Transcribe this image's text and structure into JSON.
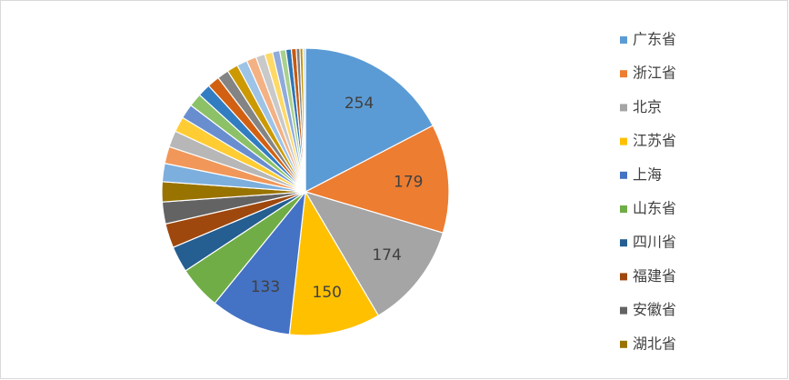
{
  "chart_data": {
    "type": "pie",
    "categories": [
      "广东省",
      "浙江省",
      "北京",
      "江苏省",
      "上海",
      "山东省",
      "四川省",
      "福建省",
      "安徽省",
      "湖北省",
      null,
      null,
      null,
      null,
      null,
      null,
      null,
      null,
      null,
      null,
      null,
      null,
      null,
      null,
      null,
      null,
      null,
      null,
      null,
      null,
      null
    ],
    "values": [
      254,
      179,
      174,
      150,
      133,
      71,
      43,
      40,
      36,
      33,
      30,
      28,
      27,
      25,
      24,
      22,
      21,
      20,
      19,
      18,
      17,
      16,
      15,
      13,
      12,
      10,
      9,
      8,
      6,
      5,
      4
    ],
    "colors": [
      "#5b9bd5",
      "#ed7d31",
      "#a5a5a5",
      "#ffc000",
      "#4472c4",
      "#70ad47",
      "#255e91",
      "#9e480e",
      "#636363",
      "#997300",
      "#7cafdd",
      "#f1975a",
      "#b7b7b7",
      "#ffcd33",
      "#698ed0",
      "#8cc168",
      "#327dc2",
      "#d26012",
      "#848484",
      "#cc9a00",
      "#9dc3e6",
      "#f4b183",
      "#c9c9c9",
      "#ffd966",
      "#8faadc",
      "#a9d18e",
      "#2e75b6",
      "#c55a11",
      "#7f7f7f",
      "#bf9000",
      "#bdd7ee"
    ],
    "legend": "right"
  }
}
